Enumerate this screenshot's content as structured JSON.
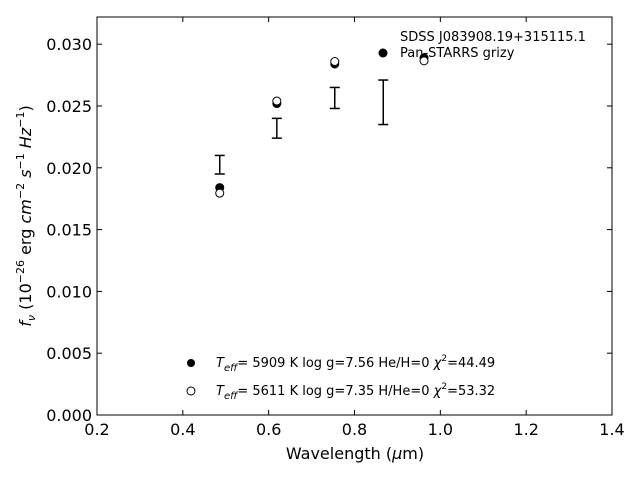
{
  "chart_data": {
    "type": "scatter",
    "xlabel": "Wavelength (μm)",
    "ylabel": "f_ν (10^−26 erg cm^−2 s^−1 Hz^−1)",
    "xlim": [
      0.2,
      1.4
    ],
    "ylim": [
      0.0,
      0.0322
    ],
    "x_ticks": [
      0.2,
      0.4,
      0.6,
      0.8,
      1.0,
      1.2,
      1.4
    ],
    "x_tick_labels": [
      "0.2",
      "0.4",
      "0.6",
      "0.8",
      "1.0",
      "1.2",
      "1.4"
    ],
    "y_ticks": [
      0.0,
      0.005,
      0.01,
      0.015,
      0.02,
      0.025,
      0.03
    ],
    "y_tick_labels": [
      "0.000",
      "0.005",
      "0.010",
      "0.015",
      "0.020",
      "0.025",
      "0.030"
    ],
    "grid": false,
    "legend_placement": "top-right",
    "observed": {
      "name": "SDSS J083908.19+315115.1\nPan-STARRS grizy",
      "points": [
        {
          "x": 0.486,
          "low": 0.0195,
          "high": 0.021
        },
        {
          "x": 0.619,
          "low": 0.0224,
          "high": 0.024
        },
        {
          "x": 0.754,
          "low": 0.0248,
          "high": 0.0265
        },
        {
          "x": 0.867,
          "low": 0.0235,
          "high": 0.0271
        }
      ]
    },
    "series": [
      {
        "name": "Teff= 5909 K log g=7.56 He/H=0 χ2=44.49",
        "marker": "filled-circle",
        "x": [
          0.486,
          0.619,
          0.754,
          0.962
        ],
        "y": [
          0.0184,
          0.0252,
          0.0284,
          0.0289
        ]
      },
      {
        "name": "Teff= 5611 K log g=7.35 H/He=0 χ2=53.32",
        "marker": "open-circle",
        "x": [
          0.486,
          0.619,
          0.754,
          0.962
        ],
        "y": [
          0.01795,
          0.0254,
          0.0286,
          0.02865
        ]
      }
    ]
  },
  "legend": {
    "observed": {
      "line1": "SDSS J083908.19+315115.1",
      "line2": "Pan-STARRS grizy"
    },
    "fit1": {
      "teff_sym": "T",
      "teff_sub": "eff",
      "teff_rest": "=  5909 K  log g=7.56  He/H=0",
      "chi_sym": "χ",
      "chi_sup": "2",
      "chi_rest": "=44.49"
    },
    "fit2": {
      "teff_sym": "T",
      "teff_sub": "eff",
      "teff_rest": "=  5611 K  log g=7.35  H/He=0",
      "chi_sym": "χ",
      "chi_sup": "2",
      "chi_rest": "=53.32"
    }
  },
  "axis_text": {
    "xlabel_main": "Wavelength (",
    "xlabel_mu": "μ",
    "xlabel_unit": "m)",
    "ylabel_f": "f",
    "ylabel_nu": "ν",
    "ylabel_open": " (10",
    "ylabel_exp1": "−26",
    "ylabel_erg": " erg ",
    "ylabel_cm": "cm",
    "ylabel_exp2": "−2",
    "ylabel_s": " s",
    "ylabel_exp3": "−1",
    "ylabel_hz": " Hz",
    "ylabel_exp4": "−1",
    "ylabel_close": ")"
  }
}
